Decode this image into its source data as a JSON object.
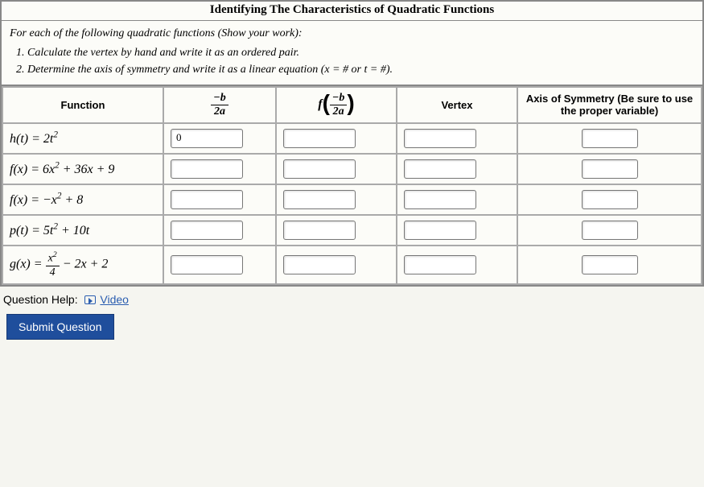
{
  "title": "Identifying The Characteristics of Quadratic Functions",
  "intro": "For each of the following quadratic functions (Show your work):",
  "step1": "Calculate the vertex by hand and write it as an ordered pair.",
  "step2": "Determine the axis of symmetry and write it as a linear equation (x = # or t = #).",
  "headers": {
    "function": "Function",
    "vertex": "Vertex",
    "axis": "Axis of Symmetry (Be sure to use the proper variable)"
  },
  "rows": {
    "r1": {
      "func_html": "h(t) = 2t<sup>2</sup>",
      "val1": "0"
    },
    "r2": {
      "func_html": "f(x) = 6x<sup>2</sup> + 36x + 9",
      "val1": ""
    },
    "r3": {
      "func_html": "f(x) = −x<sup>2</sup> + 8",
      "val1": ""
    },
    "r4": {
      "func_html": "p(t) = 5t<sup>2</sup> + 10t",
      "val1": ""
    },
    "r5": {
      "func_prefix": "g(x) = ",
      "frac_num": "x<sup>2</sup>",
      "frac_den": "4",
      "func_suffix": " − 2x + 2",
      "val1": ""
    }
  },
  "help_label": "Question Help:",
  "video_label": "Video",
  "submit_label": "Submit Question",
  "frac_header": {
    "num": "−b",
    "den": "2a"
  },
  "colors": {
    "border": "#888",
    "cell_border": "#aaa",
    "background": "#fcfcf8",
    "link": "#2a5db0",
    "button_bg": "#1f4e9c",
    "button_text": "#ffffff"
  }
}
